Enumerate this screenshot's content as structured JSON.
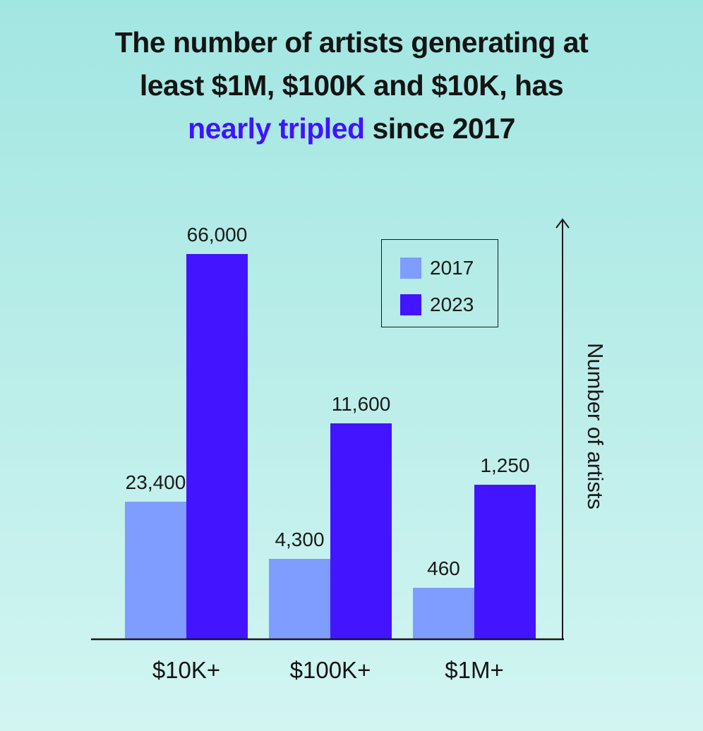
{
  "title": {
    "line1": "The number of artists generating at",
    "line2": "least $1M, $100K and $10K, has",
    "highlight": "nearly tripled",
    "line3_rest": "since 2017"
  },
  "colors": {
    "series_2017": "#7f9cff",
    "series_2023": "#4314ff",
    "highlight": "#3f14ff",
    "text": "#1a1a1a"
  },
  "chart_data": {
    "type": "bar",
    "categories": [
      "$10K+",
      "$100K+",
      "$1M+"
    ],
    "series": [
      {
        "name": "2017",
        "values": [
          23400,
          4300,
          460
        ],
        "labels": [
          "23,400",
          "4,300",
          "460"
        ]
      },
      {
        "name": "2023",
        "values": [
          66000,
          11600,
          1250
        ],
        "labels": [
          "66,000",
          "11,600",
          "1,250"
        ]
      }
    ],
    "xlabel": "",
    "ylabel": "Number of artists",
    "y_scale": "non-linear (not to scale)",
    "legend_position": "top-right",
    "grid": false
  }
}
